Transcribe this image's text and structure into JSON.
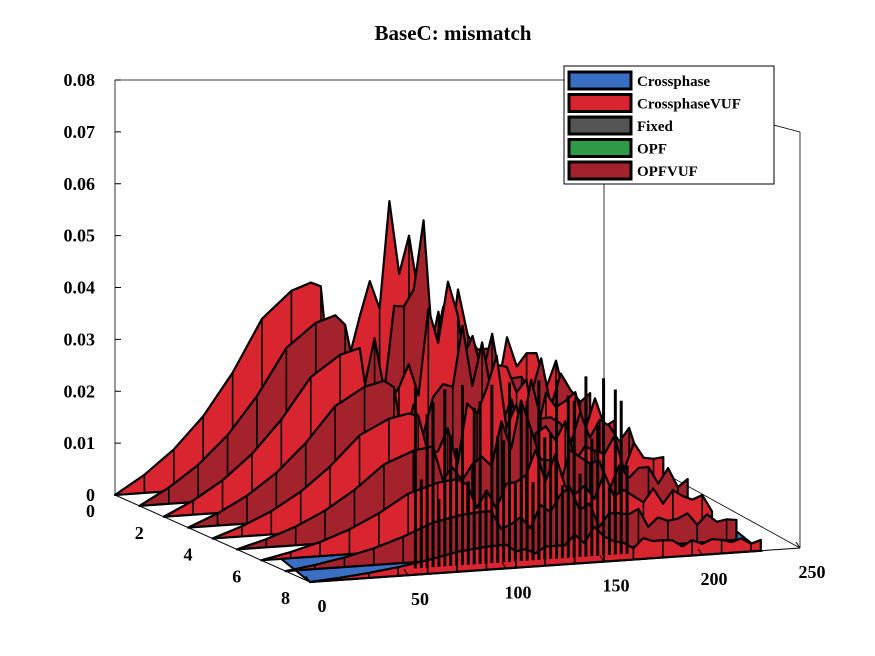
{
  "chart_data": {
    "type": "surface",
    "title": "BaseC: mismatch",
    "xlabel": "",
    "ylabel": "",
    "zlabel": "",
    "x_ticks": [
      "0",
      "2",
      "4",
      "6",
      "8"
    ],
    "y_ticks": [
      "0",
      "50",
      "100",
      "150",
      "200",
      "250"
    ],
    "z_ticks": [
      "0",
      "0.01",
      "0.02",
      "0.03",
      "0.04",
      "0.05",
      "0.06",
      "0.07",
      "0.08"
    ],
    "xlim": [
      0,
      8
    ],
    "ylim": [
      0,
      250
    ],
    "zlim": [
      0,
      0.08
    ],
    "legend_position": "top-right",
    "grid": false,
    "series": [
      {
        "name": "Crossphase",
        "color": "#3a6fc4"
      },
      {
        "name": "CrossphaseVUF",
        "color": "#d9252f"
      },
      {
        "name": "Fixed",
        "color": "#555555"
      },
      {
        "name": "OPF",
        "color": "#2e9a48"
      },
      {
        "name": "OPFVUF",
        "color": "#a3222b"
      }
    ],
    "upper_envelope": {
      "y": [
        0,
        15,
        30,
        45,
        60,
        75,
        90,
        105,
        108,
        125,
        145,
        160,
        175,
        190,
        205,
        220,
        230
      ],
      "z": [
        0.0,
        0.0035,
        0.008,
        0.014,
        0.022,
        0.032,
        0.037,
        0.039,
        0.028,
        0.035,
        0.059,
        0.029,
        0.036,
        0.024,
        0.026,
        0.022,
        0.018
      ]
    }
  }
}
